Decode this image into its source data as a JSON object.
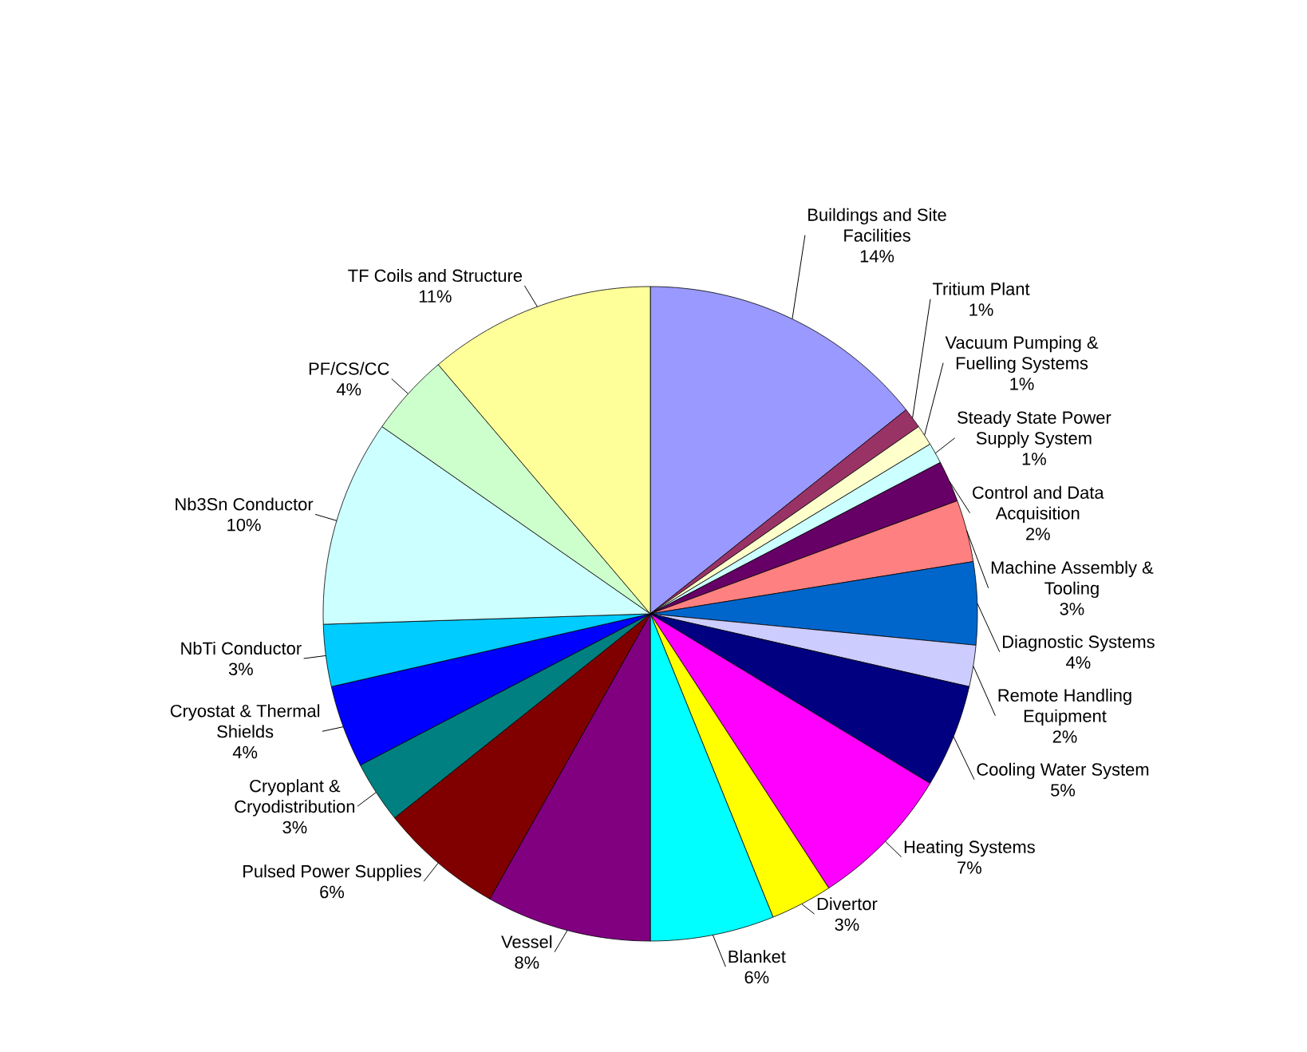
{
  "chart_data": {
    "type": "pie",
    "categories": [
      "Buildings and Site Facilities",
      "Tritium Plant",
      "Vacuum Pumping & Fuelling Systems",
      "Steady State Power Supply System",
      "Control and Data Acquisition",
      "Machine Assembly & Tooling",
      "Diagnostic Systems",
      "Remote Handling Equipment",
      "Cooling Water System",
      "Heating Systems",
      "Divertor",
      "Blanket",
      "Vessel",
      "Pulsed Power Supplies",
      "Cryoplant & Cryodistribution",
      "Cryostat & Thermal Shields",
      "NbTi Conductor",
      "Nb3Sn Conductor",
      "PF/CS/CC",
      "TF Coils and Structure"
    ],
    "values": [
      14,
      1,
      1,
      1,
      2,
      3,
      4,
      2,
      5,
      7,
      3,
      6,
      8,
      6,
      3,
      4,
      3,
      10,
      4,
      11
    ],
    "value_labels": [
      "14%",
      "1%",
      "1%",
      "1%",
      "2%",
      "3%",
      "4%",
      "2%",
      "5%",
      "7%",
      "3%",
      "6%",
      "8%",
      "6%",
      "3%",
      "4%",
      "3%",
      "10%",
      "4%",
      "11%"
    ],
    "colors": [
      "#9999ff",
      "#993366",
      "#ffffcc",
      "#ccffff",
      "#660066",
      "#ff8080",
      "#0066cc",
      "#ccccff",
      "#000080",
      "#ff00ff",
      "#ffff00",
      "#00ffff",
      "#800080",
      "#800000",
      "#008080",
      "#0000ff",
      "#00ccff",
      "#ccffff",
      "#ccffcc",
      "#ffff99"
    ]
  }
}
